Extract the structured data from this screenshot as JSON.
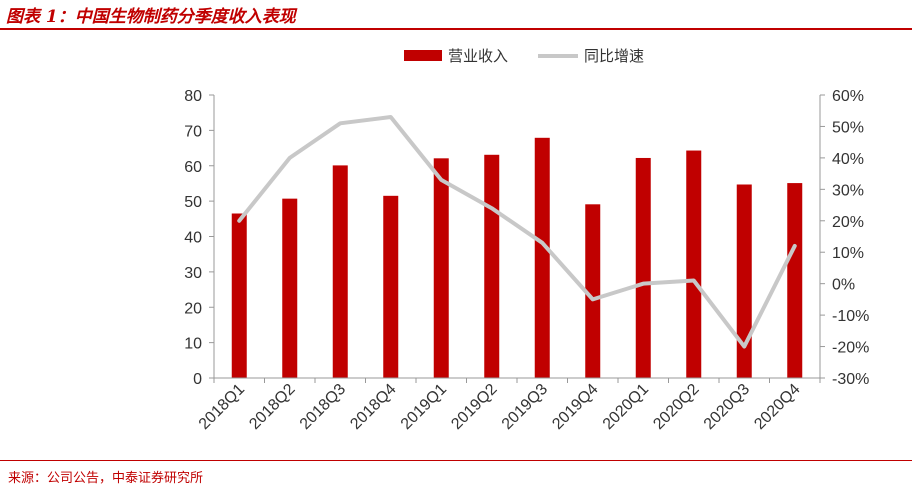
{
  "page": {
    "title": "图表 1：中国生物制药分季度收入表现",
    "source": "来源：公司公告，中泰证券研究所"
  },
  "colors": {
    "bar": "#c00000",
    "line": "#c8c8c8",
    "accent": "#c00000"
  },
  "chart_data": {
    "type": "bar",
    "categories": [
      "2018Q1",
      "2018Q2",
      "2018Q3",
      "2018Q4",
      "2019Q1",
      "2019Q2",
      "2019Q3",
      "2019Q4",
      "2020Q1",
      "2020Q2",
      "2020Q3",
      "2020Q4"
    ],
    "series": [
      {
        "name": "营业收入",
        "type": "bar",
        "axis": "left",
        "values": [
          46.5,
          50.7,
          60.1,
          51.5,
          62.1,
          63.1,
          67.9,
          49.1,
          62.2,
          64.3,
          54.7,
          55.1
        ]
      },
      {
        "name": "同比增速",
        "type": "line",
        "axis": "right",
        "values": [
          0.2,
          0.4,
          0.51,
          0.53,
          0.33,
          0.24,
          0.13,
          -0.05,
          0.0,
          0.01,
          -0.2,
          0.12
        ]
      }
    ],
    "ylim_left": [
      0,
      80
    ],
    "yticks_left": [
      "0",
      "10",
      "20",
      "30",
      "40",
      "50",
      "60",
      "70",
      "80"
    ],
    "ylim_right": [
      -0.3,
      0.6
    ],
    "yticks_right": [
      "-30%",
      "-20%",
      "-10%",
      "0%",
      "10%",
      "20%",
      "30%",
      "40%",
      "50%",
      "60%"
    ],
    "legend_position": "top-center",
    "grid": false
  }
}
